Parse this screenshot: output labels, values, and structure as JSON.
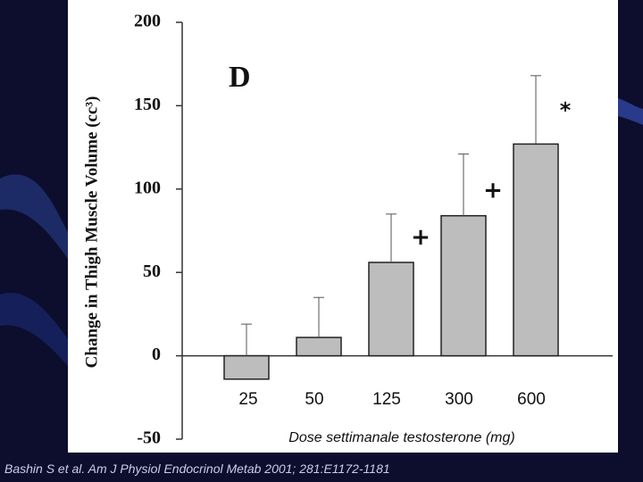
{
  "slide": {
    "citation": "Bashin S et al. Am J Physiol Endocrinol Metab 2001; 281:E1172-1181",
    "background_color": "#0d0d2e",
    "accent_color": "#1c2a66"
  },
  "chart_data": {
    "type": "bar",
    "panel_label": "D",
    "ylabel": "Change in Thigh Muscle Volume (cc³)",
    "xlabel": "Dose settimanale testosterone (mg)",
    "ylim": [
      -50,
      200
    ],
    "yticks": [
      200,
      150,
      100,
      50,
      0,
      -50
    ],
    "categories": [
      "25",
      "50",
      "125",
      "300",
      "600"
    ],
    "values": [
      -14,
      11,
      56,
      84,
      127
    ],
    "error_upper": [
      19,
      35,
      85,
      121,
      168
    ],
    "significance": [
      "",
      "",
      "+",
      "+",
      "*"
    ],
    "bar_color": "#bdbdbd",
    "grid": false
  }
}
